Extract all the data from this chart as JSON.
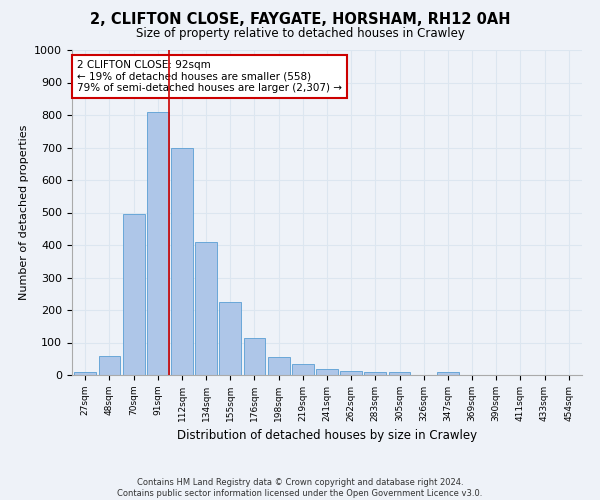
{
  "title": "2, CLIFTON CLOSE, FAYGATE, HORSHAM, RH12 0AH",
  "subtitle": "Size of property relative to detached houses in Crawley",
  "xlabel": "Distribution of detached houses by size in Crawley",
  "ylabel": "Number of detached properties",
  "categories": [
    "27sqm",
    "48sqm",
    "70sqm",
    "91sqm",
    "112sqm",
    "134sqm",
    "155sqm",
    "176sqm",
    "198sqm",
    "219sqm",
    "241sqm",
    "262sqm",
    "283sqm",
    "305sqm",
    "326sqm",
    "347sqm",
    "369sqm",
    "390sqm",
    "411sqm",
    "433sqm",
    "454sqm"
  ],
  "values": [
    8,
    60,
    495,
    808,
    697,
    410,
    225,
    115,
    55,
    35,
    20,
    13,
    10,
    8,
    0,
    10,
    0,
    0,
    0,
    0,
    0
  ],
  "bar_color": "#aec6e8",
  "bar_edge_color": "#5a9fd4",
  "grid_color": "#dce6f0",
  "annotation_text": "2 CLIFTON CLOSE: 92sqm\n← 19% of detached houses are smaller (558)\n79% of semi-detached houses are larger (2,307) →",
  "annotation_box_color": "#ffffff",
  "annotation_box_edge_color": "#cc0000",
  "footer_line1": "Contains HM Land Registry data © Crown copyright and database right 2024.",
  "footer_line2": "Contains public sector information licensed under the Open Government Licence v3.0.",
  "ylim": [
    0,
    1000
  ],
  "background_color": "#eef2f8"
}
